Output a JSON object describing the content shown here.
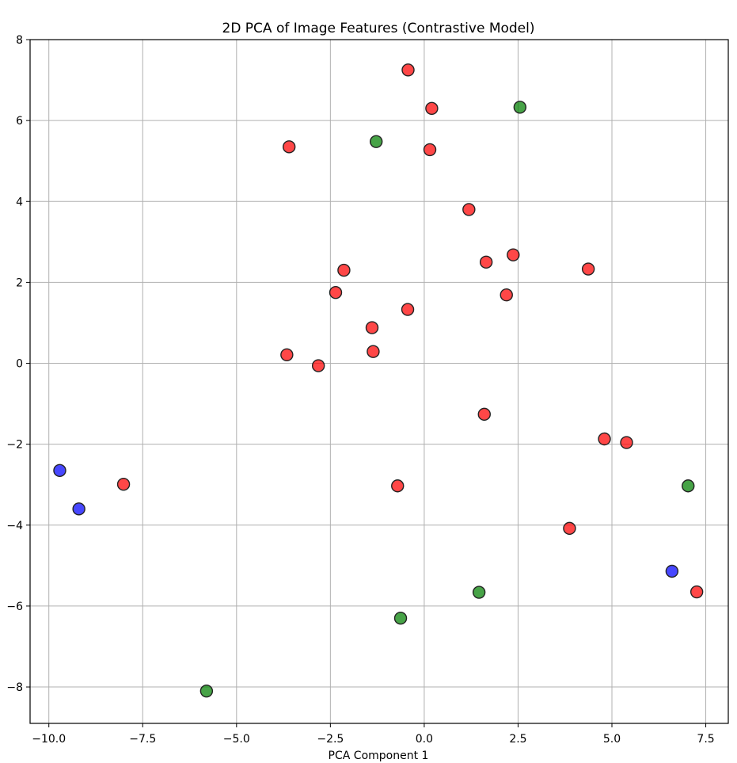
{
  "chart_data": {
    "type": "scatter",
    "title": "2D PCA of Image Features (Contrastive Model)",
    "xlabel": "PCA Component 1",
    "ylabel": "",
    "xlim": [
      -10.5,
      8.1
    ],
    "ylim": [
      -8.9,
      8.0
    ],
    "grid": true,
    "xticks": [
      -10.0,
      -7.5,
      -5.0,
      -2.5,
      0.0,
      2.5,
      5.0,
      7.5
    ],
    "yticks": [
      -8,
      -6,
      -4,
      -2,
      0,
      2,
      4,
      6,
      8
    ],
    "xtick_labels": [
      "−10.0",
      "−7.5",
      "−5.0",
      "−2.5",
      "0.0",
      "2.5",
      "5.0",
      "7.5"
    ],
    "ytick_labels": [
      "−8",
      "−6",
      "−4",
      "−2",
      "0",
      "2",
      "4",
      "6",
      "8"
    ],
    "series": [
      {
        "color": "#ff0000",
        "points": [
          {
            "x": -0.43,
            "y": 7.25
          },
          {
            "x": 0.2,
            "y": 6.3
          },
          {
            "x": -3.6,
            "y": 5.35
          },
          {
            "x": 0.15,
            "y": 5.28
          },
          {
            "x": 1.19,
            "y": 3.8
          },
          {
            "x": 1.65,
            "y": 2.5
          },
          {
            "x": 2.37,
            "y": 2.68
          },
          {
            "x": 4.37,
            "y": 2.33
          },
          {
            "x": -2.14,
            "y": 2.3
          },
          {
            "x": -2.36,
            "y": 1.75
          },
          {
            "x": 2.19,
            "y": 1.69
          },
          {
            "x": -0.44,
            "y": 1.33
          },
          {
            "x": -1.39,
            "y": 0.88
          },
          {
            "x": -1.36,
            "y": 0.29
          },
          {
            "x": -3.66,
            "y": 0.21
          },
          {
            "x": -2.82,
            "y": -0.06
          },
          {
            "x": 1.6,
            "y": -1.26
          },
          {
            "x": 4.8,
            "y": -1.87
          },
          {
            "x": 5.39,
            "y": -1.96
          },
          {
            "x": -8.01,
            "y": -2.99
          },
          {
            "x": -0.71,
            "y": -3.03
          },
          {
            "x": 3.87,
            "y": -4.08
          },
          {
            "x": 7.26,
            "y": -5.65
          }
        ]
      },
      {
        "color": "#008000",
        "points": [
          {
            "x": 2.55,
            "y": 6.33
          },
          {
            "x": -1.28,
            "y": 5.48
          },
          {
            "x": 7.03,
            "y": -3.03
          },
          {
            "x": 1.46,
            "y": -5.66
          },
          {
            "x": -0.63,
            "y": -6.3
          },
          {
            "x": -5.8,
            "y": -8.1
          }
        ]
      },
      {
        "color": "#0000ff",
        "points": [
          {
            "x": -9.71,
            "y": -2.65
          },
          {
            "x": -9.2,
            "y": -3.6
          },
          {
            "x": 6.6,
            "y": -5.14
          }
        ]
      }
    ]
  }
}
